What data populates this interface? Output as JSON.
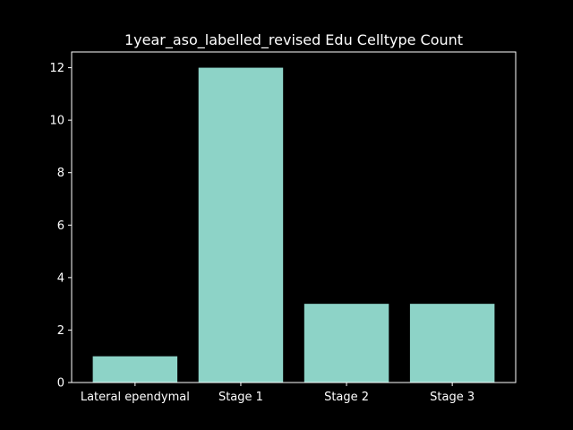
{
  "chart_data": {
    "type": "bar",
    "title": "1year_aso_labelled_revised Edu Celltype Count",
    "xlabel": "",
    "ylabel": "",
    "categories": [
      "Lateral ependymal",
      "Stage 1",
      "Stage 2",
      "Stage 3"
    ],
    "values": [
      1,
      12,
      3,
      3
    ],
    "ylim": [
      0,
      12.6
    ],
    "yticks": [
      0,
      2,
      4,
      6,
      8,
      10,
      12
    ],
    "grid": false,
    "legend": "none",
    "colors": {
      "background": "#000000",
      "bar": "#8dd3c7",
      "axis": "#ffffff",
      "text": "#ffffff"
    }
  }
}
